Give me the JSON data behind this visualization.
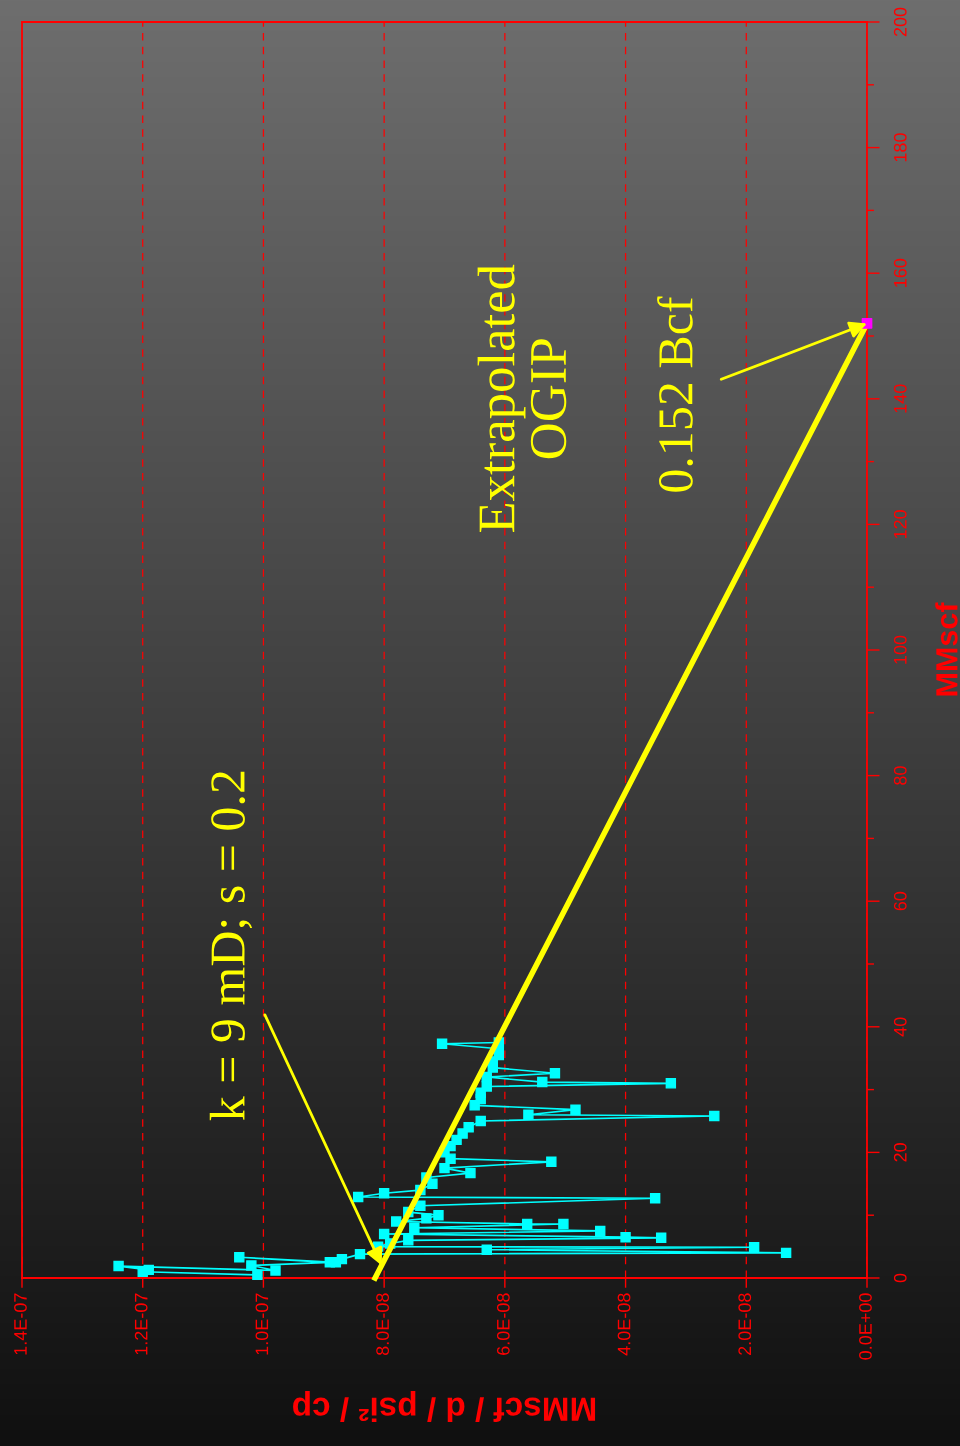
{
  "chart_data": {
    "type": "line",
    "xlabel": "MMscf / d / psi² / cp",
    "ylabel": "MMscf",
    "ylim": [
      0,
      200
    ],
    "yticks": [
      0,
      {
        "value": 10,
        "label": null
      },
      20,
      {
        "value": 30,
        "label": null
      },
      40,
      {
        "value": 50,
        "label": null
      },
      60,
      {
        "value": 70,
        "label": null
      },
      80,
      {
        "value": 90,
        "label": null
      },
      100,
      {
        "value": 110,
        "label": null
      },
      120,
      {
        "value": 130,
        "label": null
      },
      140,
      {
        "value": 150,
        "label": null
      },
      160,
      {
        "value": 170,
        "label": null
      },
      180,
      {
        "value": 190,
        "label": null
      },
      200
    ],
    "xlim": [
      1.4e-07,
      0
    ],
    "xticks": [
      {
        "value": 1.4e-07,
        "label": "1.4E-07"
      },
      {
        "value": 1.2e-07,
        "label": "1.2E-07"
      },
      {
        "value": 1e-07,
        "label": "1.0E-07"
      },
      {
        "value": 8e-08,
        "label": "8.0E-08"
      },
      {
        "value": 6e-08,
        "label": "6.0E-08"
      },
      {
        "value": 4e-08,
        "label": "4.0E-08"
      },
      {
        "value": 2e-08,
        "label": "2.0E-08"
      },
      {
        "value": 0,
        "label": "0.0E+00"
      }
    ],
    "grid": "x",
    "series": [
      {
        "color": "#00ffff",
        "marker": "square",
        "line_style": "solid",
        "values": [
          0.5,
          1.0,
          1.3,
          1.9,
          1.2,
          2.0,
          2.5,
          3.3,
          2.5,
          3.0,
          3.8,
          4.0,
          4.5,
          4.9,
          5.0,
          5.5,
          6.0,
          6.4,
          6.5,
          7.0,
          7.5,
          8.0,
          8.6,
          8.6,
          9.0,
          9.5,
          10.0,
          10.5,
          11.5,
          12.7,
          12.9,
          13.5,
          14.0,
          15.0,
          16.0,
          16.7,
          17.5,
          18.5,
          19.0,
          20.0,
          21.0,
          22.0,
          23.0,
          24.0,
          25.0,
          25.8,
          26.0,
          26.8,
          27.5,
          28.5,
          29.5,
          30.5,
          31.0,
          31.2,
          32.0,
          32.6,
          33.5,
          34.5,
          35.5,
          36.5,
          37.3,
          37.5
        ],
        "x": [
          1.01e-07,
          1.2e-07,
          1.19e-07,
          1.24e-07,
          9.8e-08,
          1.02e-07,
          8.9e-08,
          1.04e-07,
          8.8e-08,
          8.7e-08,
          8.4e-08,
          1.34e-08,
          6.3e-08,
          1.87e-08,
          8.1e-08,
          7.9e-08,
          7.6e-08,
          3.41e-08,
          4e-08,
          8e-08,
          4.42e-08,
          7.5e-08,
          5.03e-08,
          5.63e-08,
          7.8e-08,
          7.3e-08,
          7.1e-08,
          7.6e-08,
          7.4e-08,
          3.51e-08,
          8.43e-08,
          8e-08,
          7.4e-08,
          7.2e-08,
          7.3e-08,
          6.57e-08,
          7e-08,
          5.23e-08,
          6.9e-08,
          7e-08,
          6.9e-08,
          6.8e-08,
          6.7e-08,
          6.6e-08,
          6.4e-08,
          2.53e-08,
          5.61e-08,
          4.83e-08,
          6.5e-08,
          6.4e-08,
          6.4e-08,
          6.3e-08,
          3.25e-08,
          5.38e-08,
          6.3e-08,
          5.17e-08,
          6.2e-08,
          6.2e-08,
          6.1e-08,
          6.1e-08,
          7.04e-08,
          6.1e-08
        ]
      },
      {
        "color": "#ffff00",
        "marker": "none",
        "line_style": "solid",
        "x": [
          8.15e-08,
          0
        ],
        "values": [
          0,
          152
        ]
      },
      {
        "type": "scatter",
        "color": "#ff00ff",
        "marker": "square",
        "x": [
          0
        ],
        "values": [
          152
        ]
      }
    ],
    "annotations": [
      {
        "text": "k = 9 mD; s = 0.2",
        "x": 8.04e-08,
        "y": 2
      },
      "Extrapolated\nOGIP",
      {
        "text": "0.152 Bcf",
        "x": 0,
        "y": 152
      }
    ]
  }
}
